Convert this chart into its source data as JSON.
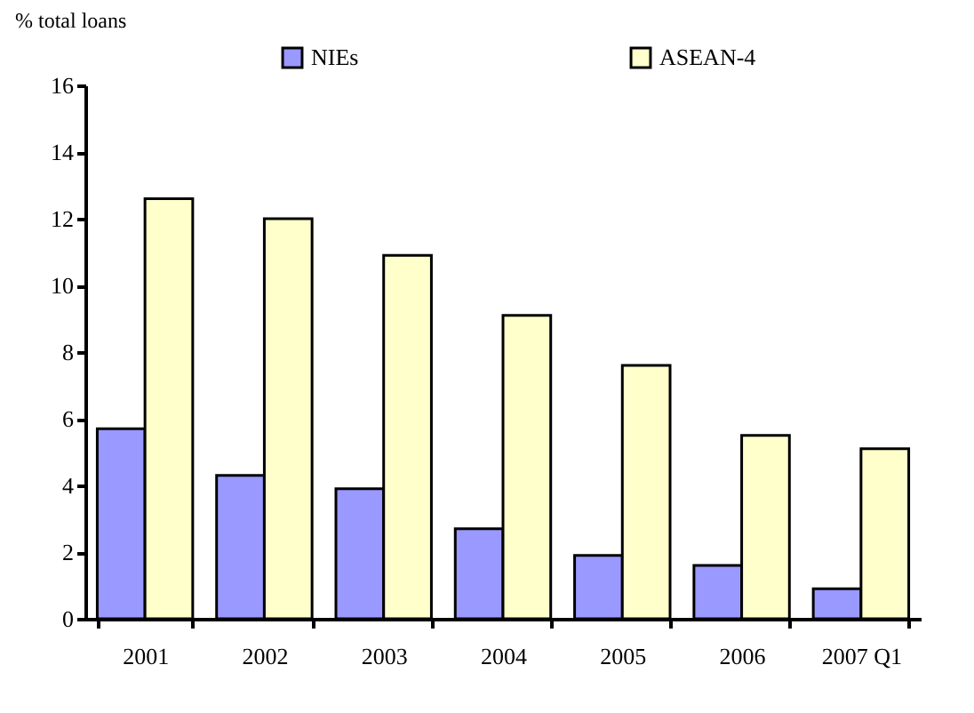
{
  "chart_data": {
    "type": "bar",
    "ylabel": "% total loans",
    "categories": [
      "2001",
      "2002",
      "2003",
      "2004",
      "2005",
      "2006",
      "2007 Q1"
    ],
    "series": [
      {
        "name": "NIEs",
        "color": "#9999ff",
        "values": [
          5.7,
          4.3,
          3.9,
          2.7,
          1.9,
          1.6,
          0.9
        ]
      },
      {
        "name": "ASEAN-4",
        "color": "#ffffcc",
        "values": [
          12.6,
          12.0,
          10.9,
          9.1,
          7.6,
          5.5,
          5.1
        ]
      }
    ],
    "ylim": [
      0,
      16
    ],
    "yticks": [
      0,
      2,
      4,
      6,
      8,
      10,
      12,
      14,
      16
    ],
    "grid": false,
    "legend": "top"
  }
}
